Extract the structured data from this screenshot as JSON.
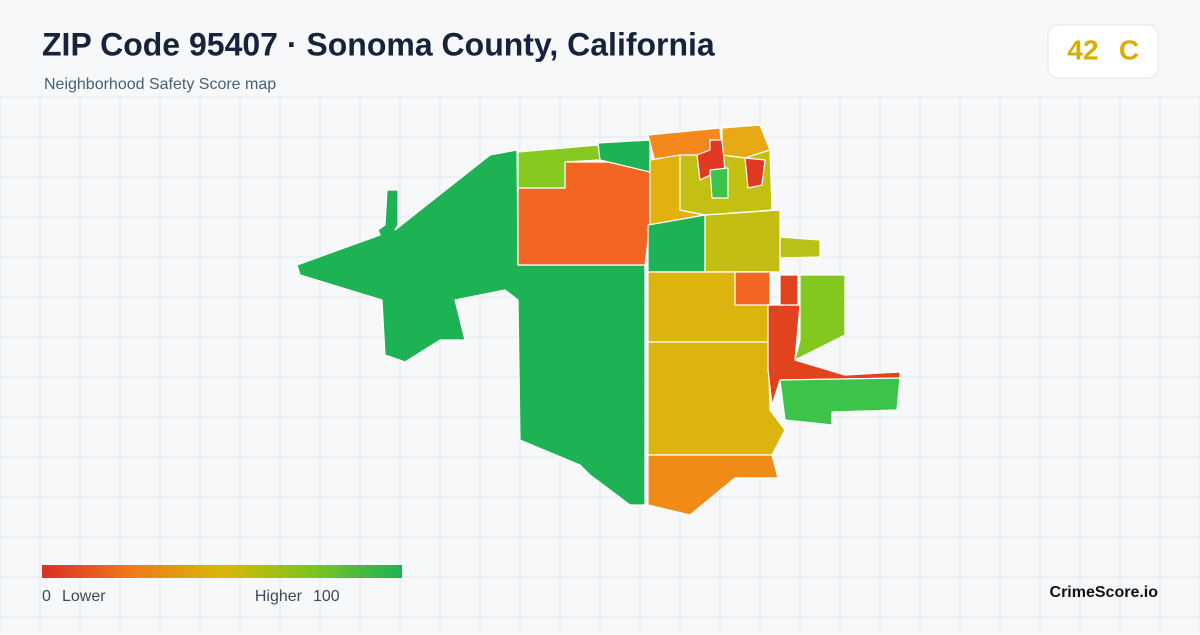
{
  "header": {
    "title": "ZIP Code 95407 · Sonoma County, California",
    "subtitle": "Neighborhood Safety Score map"
  },
  "score": {
    "value": 42,
    "grade": "C"
  },
  "legend": {
    "min": 0,
    "min_label": "Lower",
    "max_label": "Higher",
    "max": 100
  },
  "brand": "CrimeScore.io"
}
